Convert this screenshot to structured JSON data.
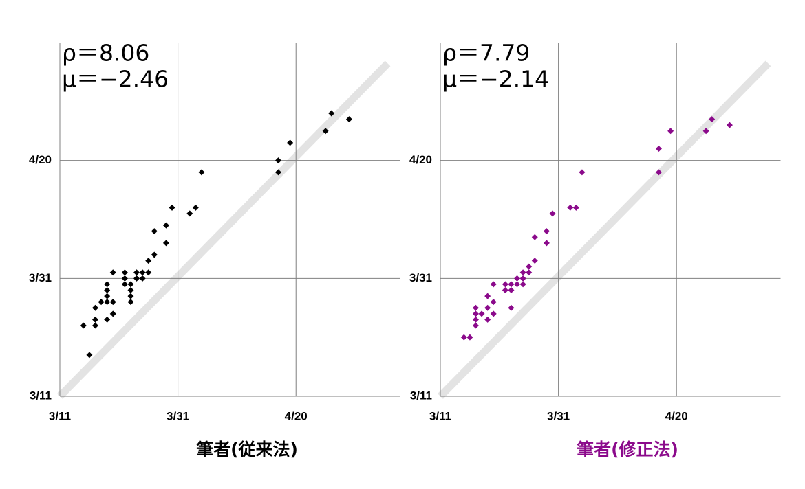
{
  "chart_data": [
    {
      "type": "scatter",
      "annotations": [
        "ρ＝8.06",
        "μ＝−2.46"
      ],
      "xlabel": "筆者(従来法)",
      "xlabel_color": "#000000",
      "color": "#000000",
      "xlim": [
        0,
        56
      ],
      "ylim": [
        0,
        60
      ],
      "xticks": [
        {
          "value": 0,
          "label": "3/11"
        },
        {
          "value": 20,
          "label": "3/31"
        },
        {
          "value": 40,
          "label": "4/20"
        }
      ],
      "yticks": [
        {
          "value": 0,
          "label": "3/11"
        },
        {
          "value": 20,
          "label": "3/31"
        },
        {
          "value": 40,
          "label": "4/20"
        }
      ],
      "x": [
        4,
        5,
        6,
        6,
        6,
        7,
        8,
        8,
        8,
        8,
        8,
        9,
        9,
        9,
        11,
        11,
        11,
        12,
        12,
        12,
        12,
        13,
        13,
        14,
        14,
        15,
        15,
        16,
        16,
        18,
        18,
        19,
        22,
        23,
        24,
        37,
        37,
        39,
        45,
        46,
        49
      ],
      "values": [
        12,
        7,
        12,
        13,
        15,
        16,
        13,
        16,
        17,
        18,
        19,
        14,
        16,
        21,
        19,
        20,
        21,
        16,
        17,
        18,
        19,
        20,
        21,
        20,
        21,
        21,
        23,
        24,
        28,
        26,
        29,
        32,
        31,
        32,
        38,
        38,
        40,
        43,
        45,
        48,
        47
      ]
    },
    {
      "type": "scatter",
      "annotations": [
        "ρ＝7.79",
        "μ＝−2.14"
      ],
      "xlabel": "筆者(修正法)",
      "xlabel_color": "#8b0a8b",
      "color": "#8b0a8b",
      "xlim": [
        0,
        56
      ],
      "ylim": [
        0,
        60
      ],
      "xticks": [
        {
          "value": 0,
          "label": "3/11"
        },
        {
          "value": 20,
          "label": "3/31"
        },
        {
          "value": 40,
          "label": "4/20"
        }
      ],
      "yticks": [
        {
          "value": 0,
          "label": "3/11"
        },
        {
          "value": 20,
          "label": "3/31"
        },
        {
          "value": 40,
          "label": "4/20"
        }
      ],
      "x": [
        4,
        5,
        6,
        6,
        6,
        6,
        7,
        8,
        8,
        8,
        9,
        9,
        9,
        11,
        11,
        12,
        12,
        12,
        13,
        13,
        14,
        14,
        14,
        15,
        15,
        16,
        16,
        18,
        18,
        19,
        22,
        23,
        24,
        37,
        37,
        39,
        45,
        46,
        49
      ],
      "values": [
        10,
        10,
        12,
        13,
        14,
        15,
        14,
        13,
        15,
        17,
        14,
        16,
        19,
        18,
        19,
        15,
        18,
        19,
        19,
        20,
        19,
        20,
        21,
        21,
        22,
        23,
        27,
        26,
        28,
        31,
        32,
        32,
        38,
        38,
        42,
        45,
        45,
        47,
        46
      ]
    }
  ]
}
